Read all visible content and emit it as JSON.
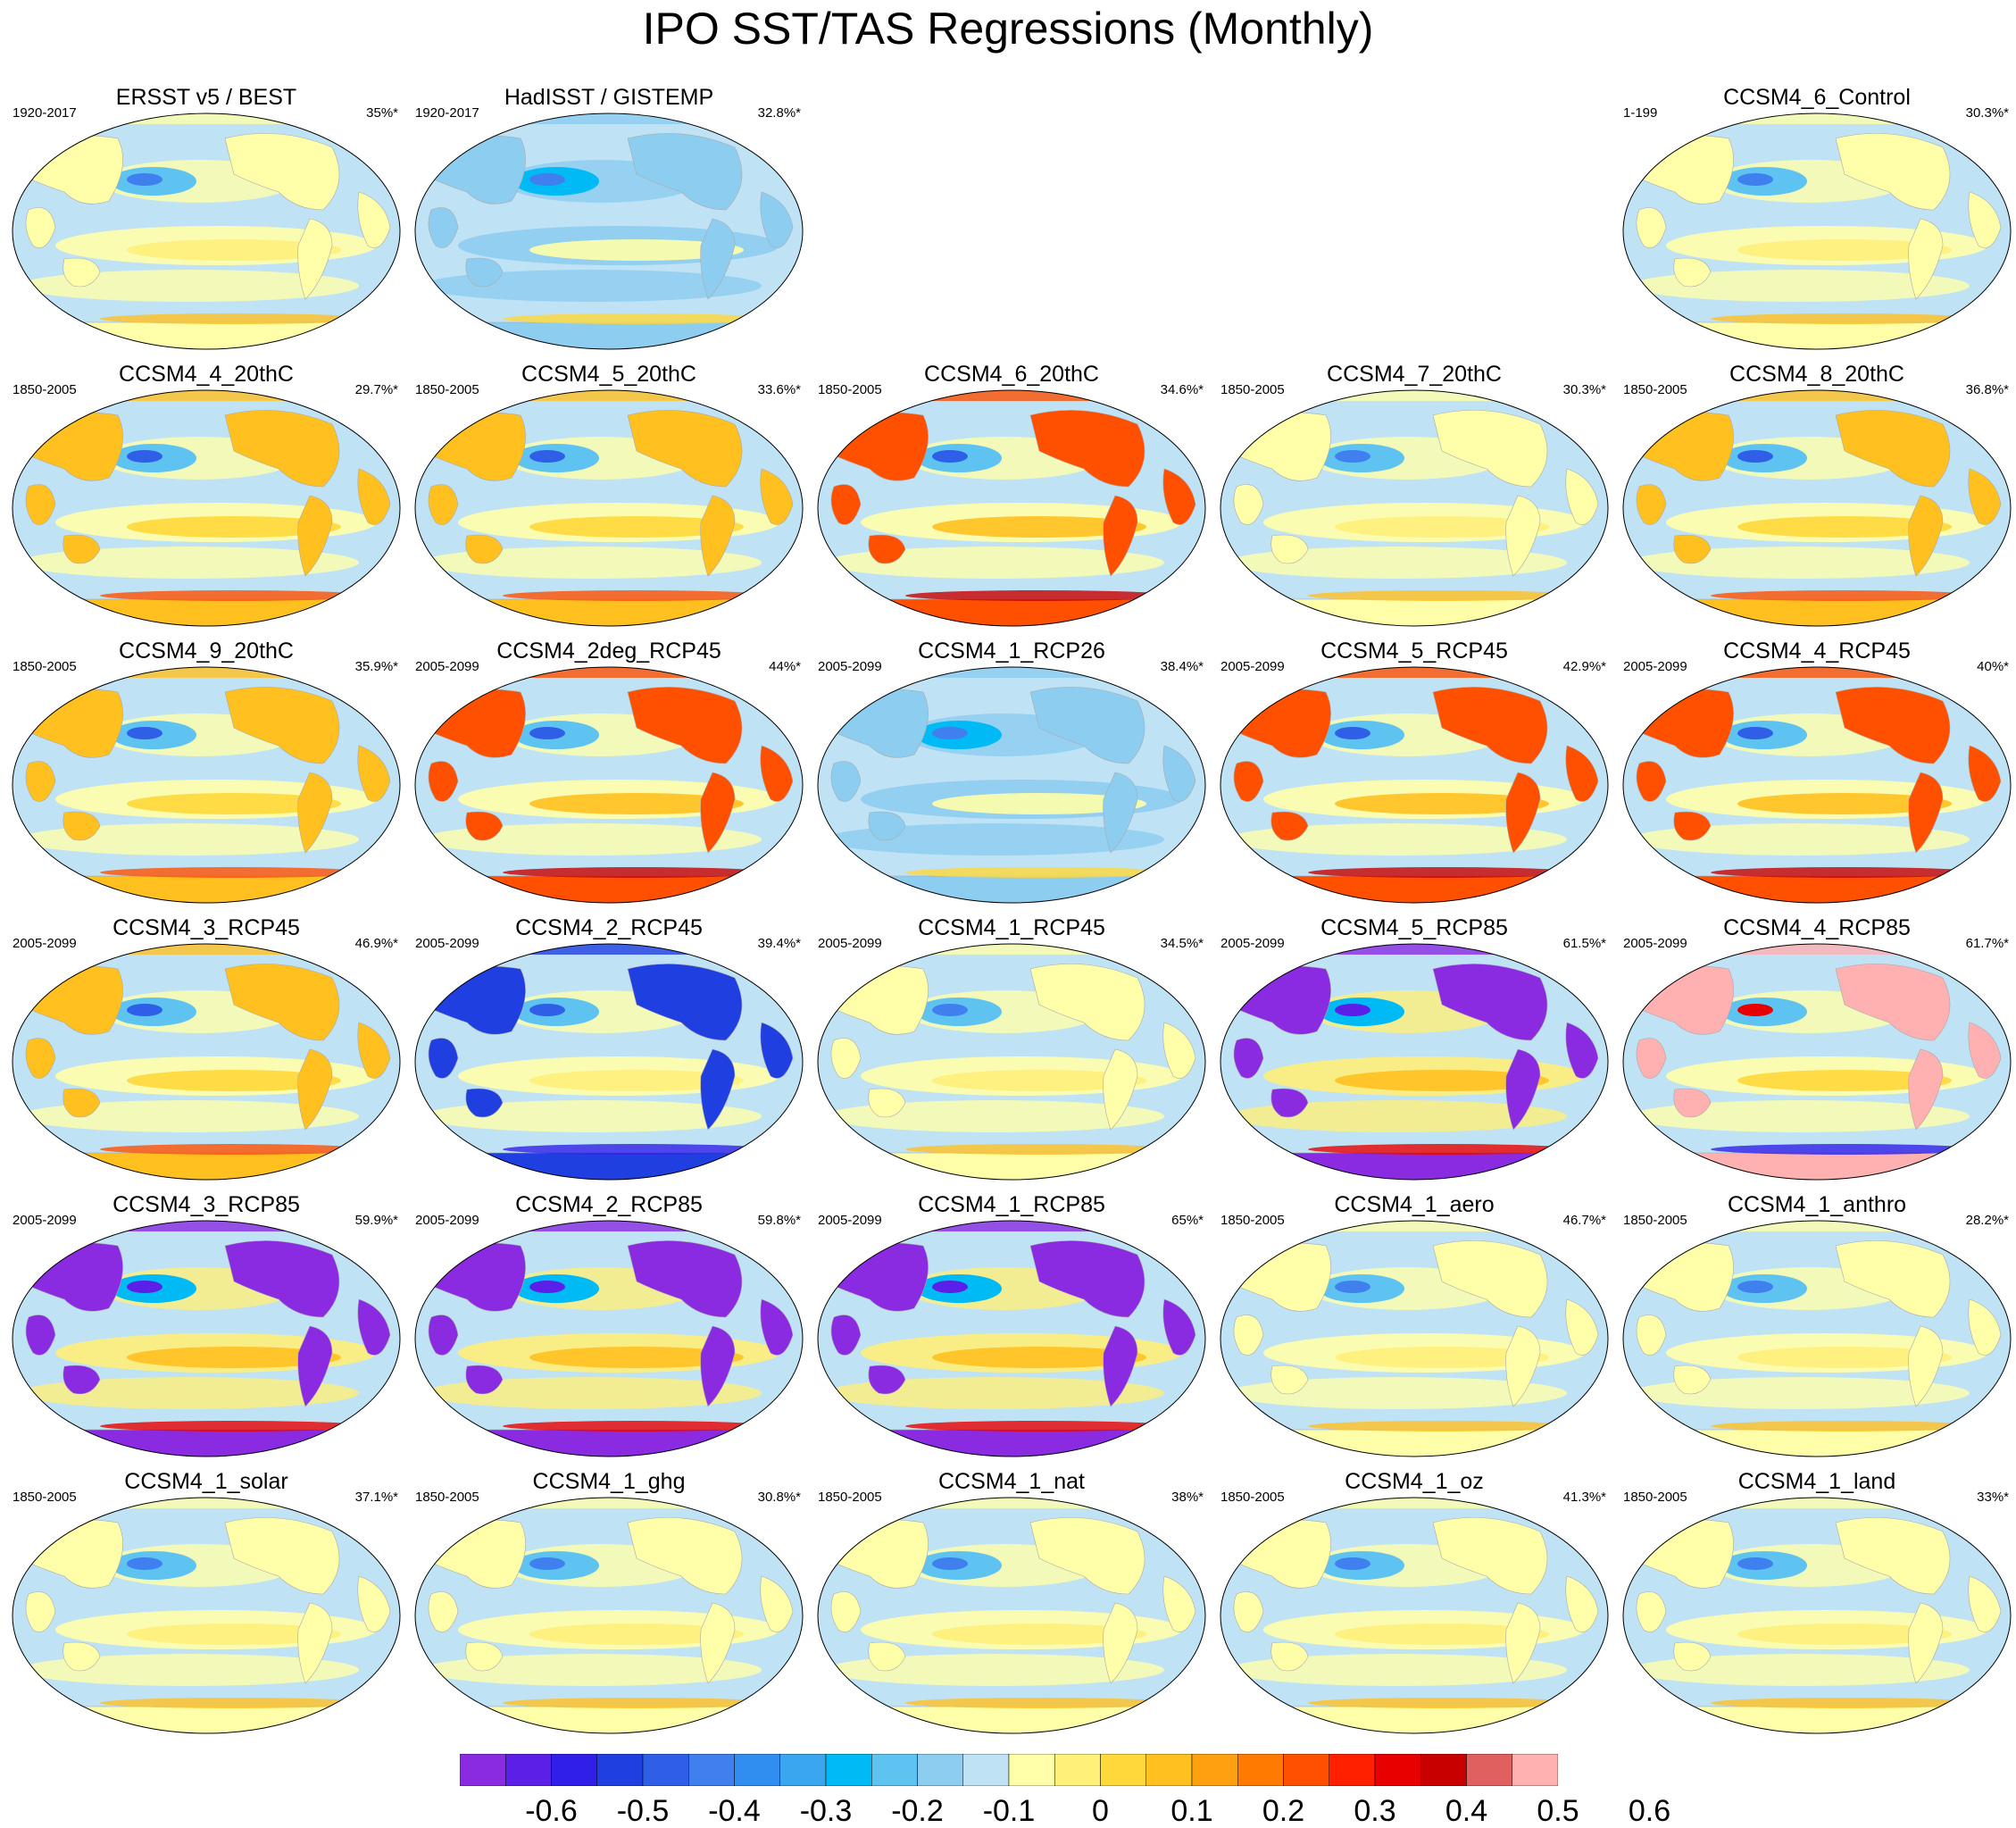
{
  "title": "IPO SST/TAS Regressions (Monthly)",
  "colors": {
    "ocean_dominant": "#bfe2f5",
    "levels": [
      "#8a2be2",
      "#5b1fe8",
      "#2f1fe8",
      "#1f3fe0",
      "#2f5fe6",
      "#3f7fee",
      "#2f8ef0",
      "#3aa6f0",
      "#00baf5",
      "#5ec3f0",
      "#8dcdf0",
      "#bfe2f5",
      "#ffffaa",
      "#fff07a",
      "#ffd83a",
      "#ffc020",
      "#ffa010",
      "#ff7a00",
      "#ff5000",
      "#ff2000",
      "#e80000",
      "#c80000",
      "#e06060",
      "#ffb0b0"
    ]
  },
  "colorbar": {
    "tick_labels": [
      "-0.6",
      "-0.5",
      "-0.4",
      "-0.3",
      "-0.2",
      "-0.1",
      "0",
      "0.1",
      "0.2",
      "0.3",
      "0.4",
      "0.5",
      "0.6"
    ]
  },
  "panels": [
    {
      "name": "ERSST v5 / BEST",
      "range": "1920-2017",
      "pct": "35%*",
      "style": "mixed"
    },
    {
      "name": "HadISST / GISTEMP",
      "range": "1920-2017",
      "pct": "32.8%*",
      "style": "cool"
    },
    {
      "name": "CCSM4_6_Control",
      "range": "1-199",
      "pct": "30.3%*",
      "style": "mixed"
    },
    {
      "name": "CCSM4_4_20thC",
      "range": "1850-2005",
      "pct": "29.7%*",
      "style": "warm"
    },
    {
      "name": "CCSM4_5_20thC",
      "range": "1850-2005",
      "pct": "33.6%*",
      "style": "warm"
    },
    {
      "name": "CCSM4_6_20thC",
      "range": "1850-2005",
      "pct": "34.6%*",
      "style": "hot"
    },
    {
      "name": "CCSM4_7_20thC",
      "range": "1850-2005",
      "pct": "30.3%*",
      "style": "mixed"
    },
    {
      "name": "CCSM4_8_20thC",
      "range": "1850-2005",
      "pct": "36.8%*",
      "style": "warm"
    },
    {
      "name": "CCSM4_9_20thC",
      "range": "1850-2005",
      "pct": "35.9%*",
      "style": "warm"
    },
    {
      "name": "CCSM4_2deg_RCP45",
      "range": "2005-2099",
      "pct": "44%*",
      "style": "hot"
    },
    {
      "name": "CCSM4_1_RCP26",
      "range": "2005-2099",
      "pct": "38.4%*",
      "style": "cool"
    },
    {
      "name": "CCSM4_5_RCP45",
      "range": "2005-2099",
      "pct": "42.9%*",
      "style": "hot"
    },
    {
      "name": "CCSM4_4_RCP45",
      "range": "2005-2099",
      "pct": "40%*",
      "style": "hot"
    },
    {
      "name": "CCSM4_3_RCP45",
      "range": "2005-2099",
      "pct": "46.9%*",
      "style": "warm"
    },
    {
      "name": "CCSM4_2_RCP45",
      "range": "2005-2099",
      "pct": "39.4%*",
      "style": "blue"
    },
    {
      "name": "CCSM4_1_RCP45",
      "range": "2005-2099",
      "pct": "34.5%*",
      "style": "mixed"
    },
    {
      "name": "CCSM4_5_RCP85",
      "range": "2005-2099",
      "pct": "61.5%*",
      "style": "purple"
    },
    {
      "name": "CCSM4_4_RCP85",
      "range": "2005-2099",
      "pct": "61.7%*",
      "style": "pink"
    },
    {
      "name": "CCSM4_3_RCP85",
      "range": "2005-2099",
      "pct": "59.9%*",
      "style": "purple"
    },
    {
      "name": "CCSM4_2_RCP85",
      "range": "2005-2099",
      "pct": "59.8%*",
      "style": "purple"
    },
    {
      "name": "CCSM4_1_RCP85",
      "range": "2005-2099",
      "pct": "65%*",
      "style": "purple"
    },
    {
      "name": "CCSM4_1_aero",
      "range": "1850-2005",
      "pct": "46.7%*",
      "style": "mixed"
    },
    {
      "name": "CCSM4_1_anthro",
      "range": "1850-2005",
      "pct": "28.2%*",
      "style": "mixed"
    },
    {
      "name": "CCSM4_1_solar",
      "range": "1850-2005",
      "pct": "37.1%*",
      "style": "mixed"
    },
    {
      "name": "CCSM4_1_ghg",
      "range": "1850-2005",
      "pct": "30.8%*",
      "style": "mixed"
    },
    {
      "name": "CCSM4_1_nat",
      "range": "1850-2005",
      "pct": "38%*",
      "style": "mixed"
    },
    {
      "name": "CCSM4_1_oz",
      "range": "1850-2005",
      "pct": "41.3%*",
      "style": "mixed"
    },
    {
      "name": "CCSM4_1_land",
      "range": "1850-2005",
      "pct": "33%*",
      "style": "mixed"
    }
  ]
}
